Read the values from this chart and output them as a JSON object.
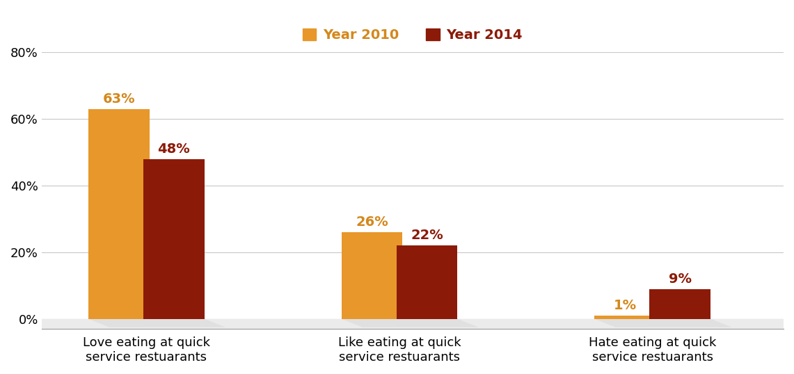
{
  "categories": [
    "Love eating at quick\nservice restuarants",
    "Like eating at quick\nservice restuarants",
    "Hate eating at quick\nservice restuarants"
  ],
  "values_2010": [
    63,
    26,
    1
  ],
  "values_2014": [
    48,
    22,
    9
  ],
  "color_2010": "#E8972A",
  "color_2014": "#8B1A08",
  "label_2010": "Year 2010",
  "label_2014": "Year 2014",
  "label_color_2010": "#D4881C",
  "label_color_2014": "#8B1A08",
  "ylim": [
    0,
    80
  ],
  "yticks": [
    0,
    20,
    40,
    60,
    80
  ],
  "ytick_labels": [
    "0%",
    "20%",
    "40%",
    "60%",
    "80%"
  ],
  "bar_width": 0.35,
  "bg_color": "#FFFFFF",
  "grid_color": "#C8C8C8",
  "legend_fontsize": 14,
  "tick_label_fontsize": 13,
  "value_label_fontsize": 14
}
